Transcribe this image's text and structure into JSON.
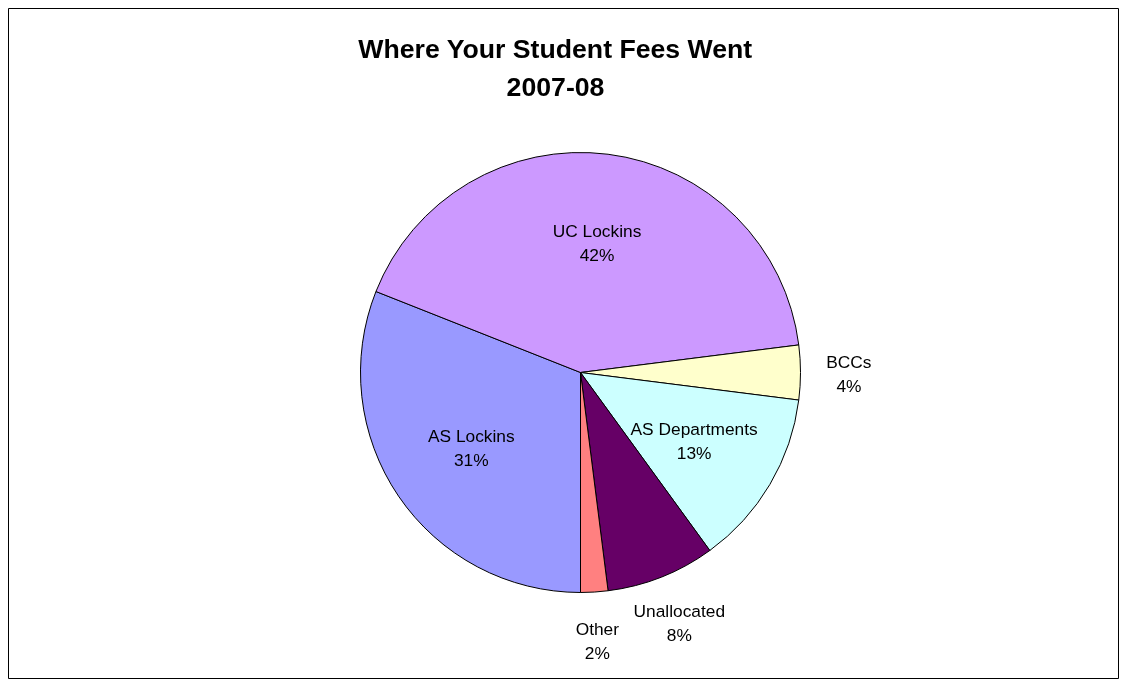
{
  "chart_data": {
    "type": "pie",
    "title": "Where Your Student Fees Went",
    "subtitle": "2007-08",
    "categories": [
      "AS Lockins",
      "UC Lockins",
      "BCCs",
      "AS Departments",
      "Unallocated",
      "Other"
    ],
    "values": [
      31,
      42,
      4,
      13,
      8,
      2
    ],
    "value_labels": [
      "31%",
      "42%",
      "4%",
      "13%",
      "8%",
      "2%"
    ],
    "colors": [
      "#9999ff",
      "#cc99ff",
      "#ffffcc",
      "#ccffff",
      "#660066",
      "#ff8080"
    ],
    "legend": false
  }
}
